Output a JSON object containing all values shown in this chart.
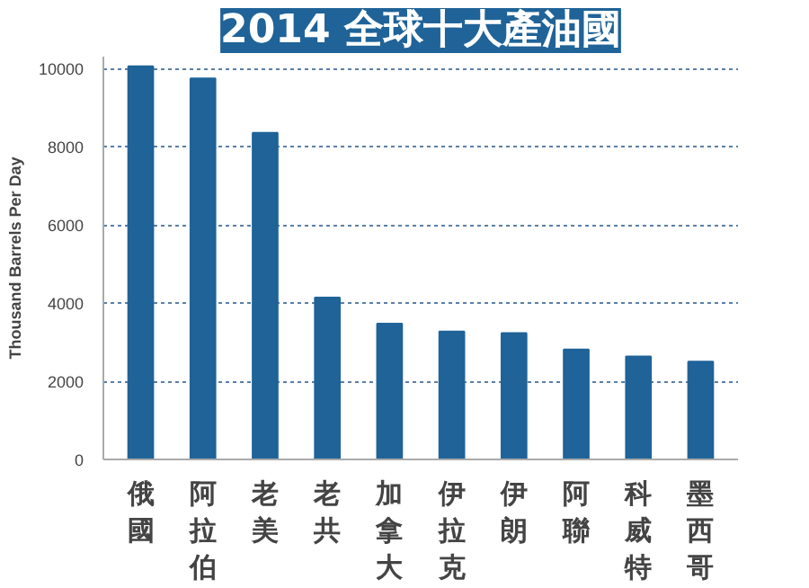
{
  "chart_data": {
    "type": "bar",
    "title": "2014 全球十大產油國",
    "ylabel": "Thousand Barrels Per Day",
    "categories": [
      "俄國",
      "阿拉伯",
      "老美",
      "老共",
      "加拿大",
      "伊拉克",
      "伊朗",
      "阿聯",
      "科威特",
      "墨西哥"
    ],
    "values": [
      10050,
      9740,
      8350,
      4140,
      3470,
      3270,
      3230,
      2810,
      2630,
      2500
    ],
    "color": "#1f6398",
    "ylim": [
      0,
      10300
    ],
    "yticks": [
      0,
      2000,
      4000,
      6000,
      8000,
      10000
    ],
    "grid": "y"
  }
}
